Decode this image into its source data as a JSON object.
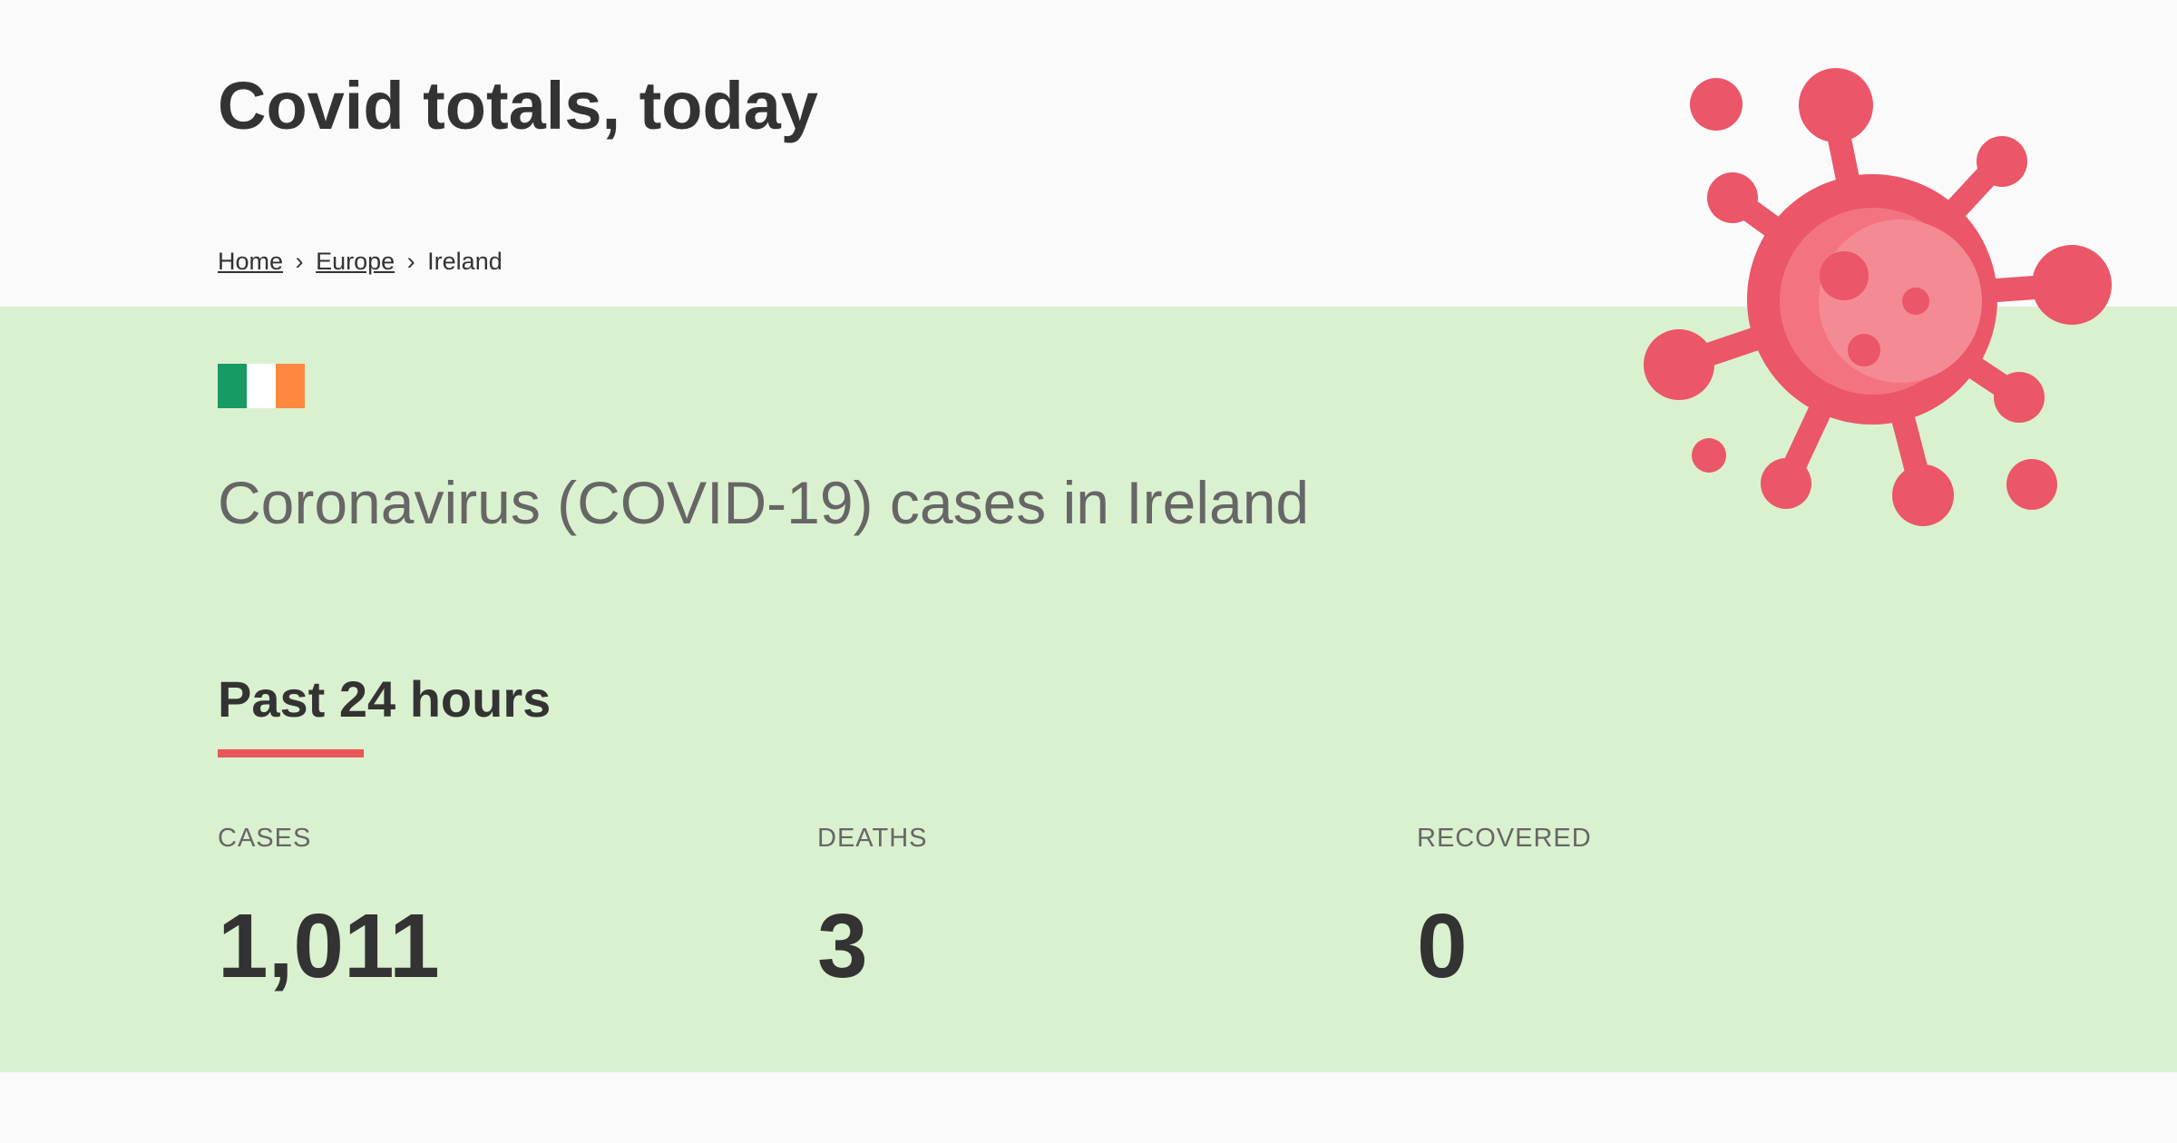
{
  "header": {
    "title": "Covid totals, today",
    "breadcrumb": {
      "home": "Home",
      "region": "Europe",
      "current": "Ireland",
      "separator": "›"
    }
  },
  "country": {
    "flag_colors": [
      "#169b62",
      "#ffffff",
      "#ff883e"
    ],
    "heading": "Coronavirus (COVID-19) cases in Ireland"
  },
  "period": {
    "title": "Past 24 hours",
    "accent_color": "#e95757"
  },
  "stats": [
    {
      "label": "CASES",
      "value": "1,011"
    },
    {
      "label": "DEATHS",
      "value": "3"
    },
    {
      "label": "RECOVERED",
      "value": "0"
    }
  ],
  "illustration": {
    "icon": "virus-icon",
    "color": "#eb5669"
  }
}
